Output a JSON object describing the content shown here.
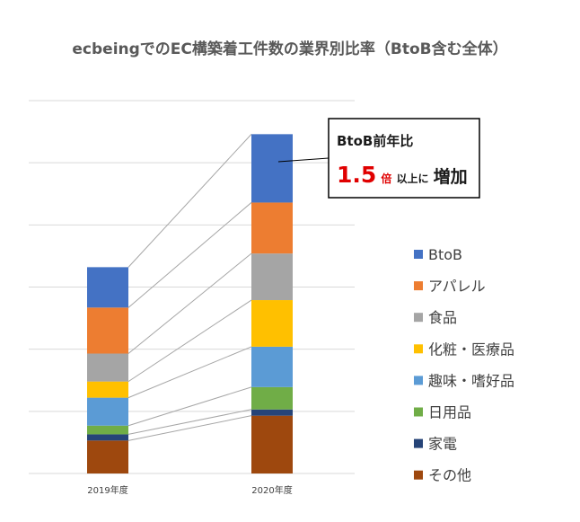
{
  "chart_data": {
    "type": "bar",
    "stacked": true,
    "title": "ecbeingでのEC構築着工件数の業界別比率（BtoB含む全体）",
    "categories": [
      "2019年度",
      "2020年度"
    ],
    "ylim": [
      0,
      6
    ],
    "grid": true,
    "legend_position": "right",
    "series": [
      {
        "name": "その他",
        "color": "#9e480e",
        "values": [
          0.53,
          0.93
        ]
      },
      {
        "name": "家電",
        "color": "#264478",
        "values": [
          0.1,
          0.1
        ]
      },
      {
        "name": "日用品",
        "color": "#70ad47",
        "values": [
          0.14,
          0.36
        ]
      },
      {
        "name": "趣味・嗜好品",
        "color": "#5b9bd5",
        "values": [
          0.45,
          0.65
        ]
      },
      {
        "name": "化粧・医療品",
        "color": "#ffc000",
        "values": [
          0.26,
          0.75
        ]
      },
      {
        "name": "食品",
        "color": "#a5a5a5",
        "values": [
          0.45,
          0.75
        ]
      },
      {
        "name": "アパレル",
        "color": "#ed7d31",
        "values": [
          0.74,
          0.82
        ]
      },
      {
        "name": "BtoB",
        "color": "#4472c4",
        "values": [
          0.65,
          1.1
        ]
      }
    ],
    "annotation": {
      "line1": "BtoB前年比",
      "value": "1.5",
      "unit": "倍",
      "mid": "以上に",
      "tail": "増加"
    }
  }
}
